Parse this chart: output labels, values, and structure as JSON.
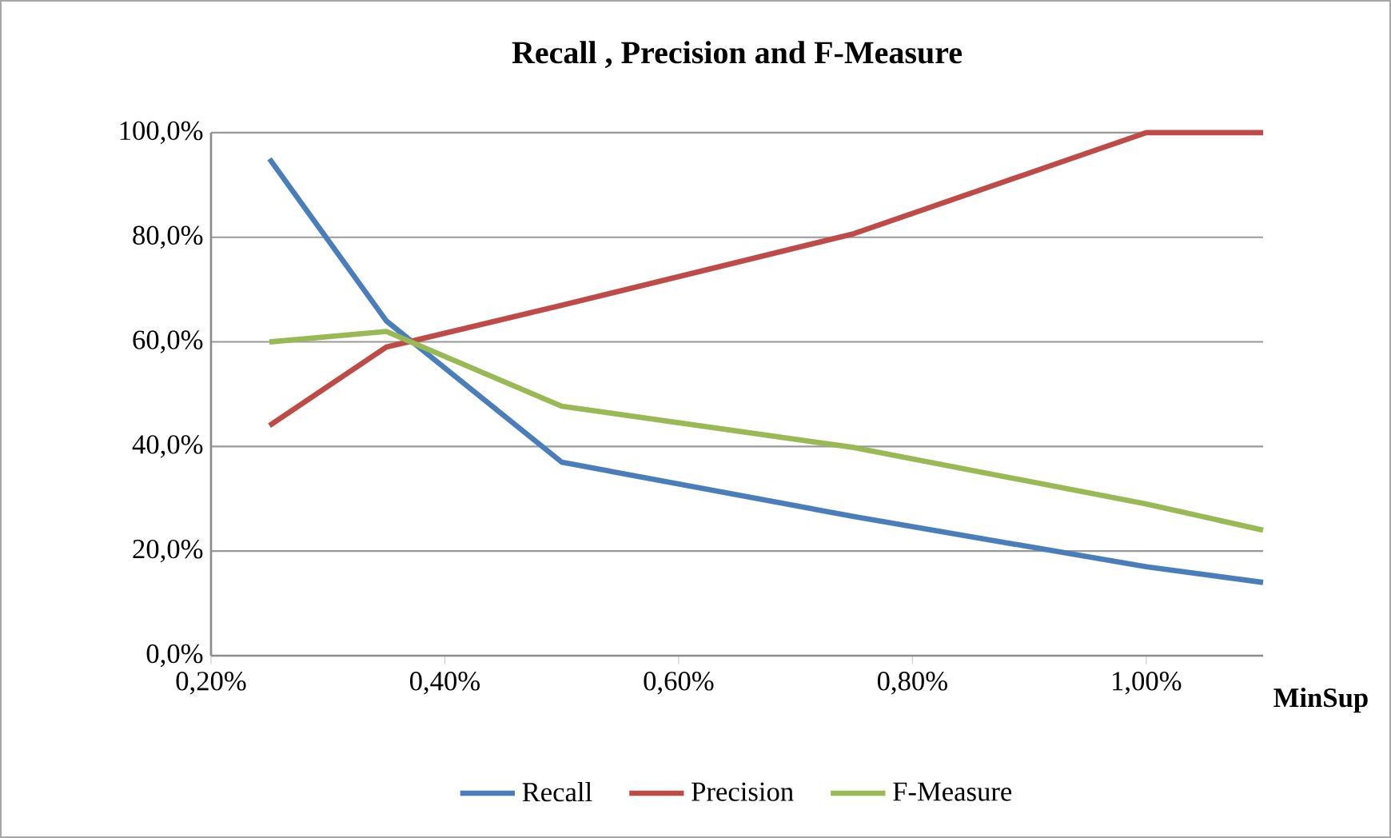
{
  "chart_data": {
    "type": "line",
    "title": "Recall , Precision and F-Measure",
    "xlabel": "MinSup",
    "x": [
      0.25,
      0.35,
      0.5,
      0.75,
      1.0,
      1.1
    ],
    "series": [
      {
        "name": "Recall",
        "color": "#4a7ebb",
        "values": [
          95,
          64,
          37,
          26.6,
          17,
          14
        ]
      },
      {
        "name": "Precision",
        "color": "#be4b48",
        "values": [
          44,
          59,
          67,
          80.7,
          100,
          100
        ]
      },
      {
        "name": "F-Measure",
        "color": "#98b954",
        "values": [
          60,
          62,
          47.7,
          39.8,
          29,
          24
        ]
      }
    ],
    "xlim": [
      0.2,
      1.1
    ],
    "ylim": [
      0,
      100
    ],
    "xticks": [
      {
        "value": 0.2,
        "label": "0,20%"
      },
      {
        "value": 0.4,
        "label": "0,40%"
      },
      {
        "value": 0.6,
        "label": "0,60%"
      },
      {
        "value": 0.8,
        "label": "0,80%"
      },
      {
        "value": 1.0,
        "label": "1,00%"
      }
    ],
    "yticks": [
      {
        "value": 0,
        "label": "0,0%"
      },
      {
        "value": 20,
        "label": "20,0%"
      },
      {
        "value": 40,
        "label": "40,0%"
      },
      {
        "value": 60,
        "label": "60,0%"
      },
      {
        "value": 80,
        "label": "80,0%"
      },
      {
        "value": 100,
        "label": "100,0%"
      }
    ],
    "grid": "y",
    "legend": "bottom",
    "marker": "none",
    "line_style": "solid"
  }
}
